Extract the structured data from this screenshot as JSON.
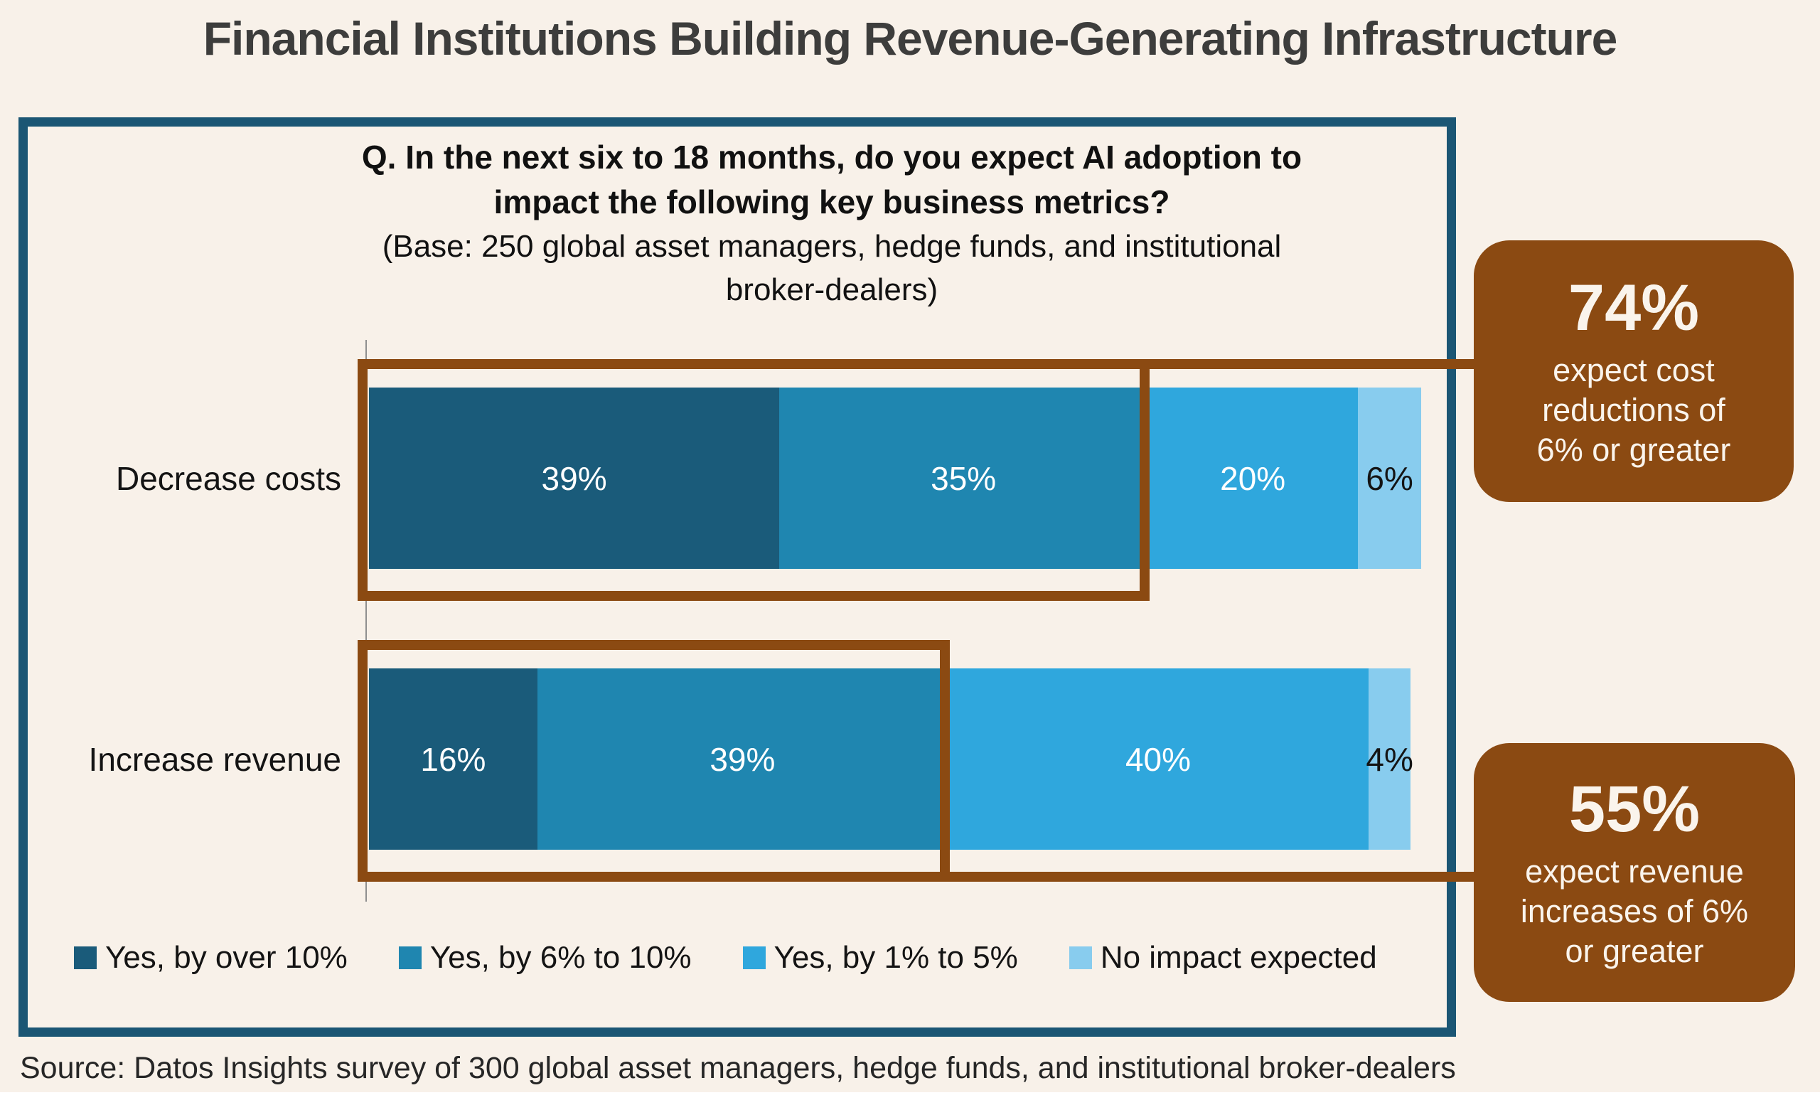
{
  "title": "Financial Institutions Building Revenue-Generating Infrastructure",
  "question": {
    "line1": "Q. In the next six to 18 months, do you expect AI adoption to",
    "line2": "impact the following key business metrics?",
    "base1": "(Base: 250 global asset managers, hedge funds, and institutional",
    "base2": "broker-dealers)"
  },
  "chart_data": {
    "type": "bar",
    "orientation": "horizontal",
    "stacked": true,
    "unit": "%",
    "xlim": [
      0,
      100
    ],
    "grid": false,
    "legend_position": "bottom",
    "value_labels": "inside",
    "categories": [
      "Decrease costs",
      "Increase revenue"
    ],
    "series": [
      {
        "name": "Yes, by over 10%",
        "color": "#1A5B7A",
        "label_color": "#FFFFFF",
        "values": [
          39,
          16
        ]
      },
      {
        "name": "Yes, by 6% to 10%",
        "color": "#1F86B0",
        "label_color": "#FFFFFF",
        "values": [
          35,
          39
        ]
      },
      {
        "name": "Yes, by 1% to 5%",
        "color": "#2FA7DD",
        "label_color": "#FFFFFF",
        "values": [
          20,
          40
        ]
      },
      {
        "name": "No impact expected",
        "color": "#88CCEE",
        "label_color": "#141414",
        "values": [
          6,
          4
        ]
      }
    ],
    "annotations": [
      {
        "applies_to": "Decrease costs",
        "highlighted_segments": [
          "Yes, by over 10%",
          "Yes, by 6% to 10%"
        ],
        "value": "74%",
        "text": "expect cost reductions of 6% or greater"
      },
      {
        "applies_to": "Increase revenue",
        "highlighted_segments": [
          "Yes, by over 10%",
          "Yes, by 6% to 10%"
        ],
        "value": "55%",
        "text": "expect revenue increases of 6% or greater"
      }
    ]
  },
  "callouts": [
    {
      "value": "74%",
      "line1": "expect cost",
      "line2": "reductions of",
      "line3": "6% or greater"
    },
    {
      "value": "55%",
      "line1": "expect revenue",
      "line2": "increases of 6%",
      "line3": "or greater"
    }
  ],
  "source": "Source: Datos Insights survey of 300 global asset managers, hedge funds, and institutional broker-dealers",
  "colors": {
    "background": "#F8F1E9",
    "box_border": "#1B5674",
    "highlight_brown": "#8B4A12",
    "title_text": "#3D3D3C",
    "dark_label": "#141414",
    "light_label": "#FFFFFF"
  }
}
